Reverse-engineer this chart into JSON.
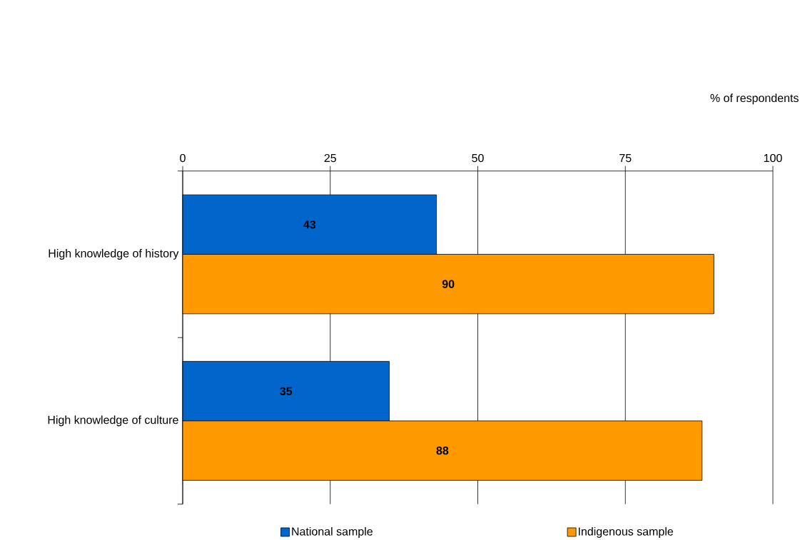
{
  "chart_data": {
    "type": "bar",
    "orientation": "horizontal",
    "xlabel": "% of respondents",
    "categories": [
      "High knowledge of history",
      "High knowledge of culture"
    ],
    "series": [
      {
        "name": "National sample",
        "color": "#0066cc",
        "values": [
          43,
          35
        ]
      },
      {
        "name": "Indigenous sample",
        "color": "#ff9900",
        "values": [
          90,
          88
        ]
      }
    ],
    "xlim": [
      0,
      100
    ],
    "xticks": [
      0,
      25,
      50,
      75,
      100
    ],
    "grid": "x",
    "legend": "bottom",
    "data_labels": true
  }
}
